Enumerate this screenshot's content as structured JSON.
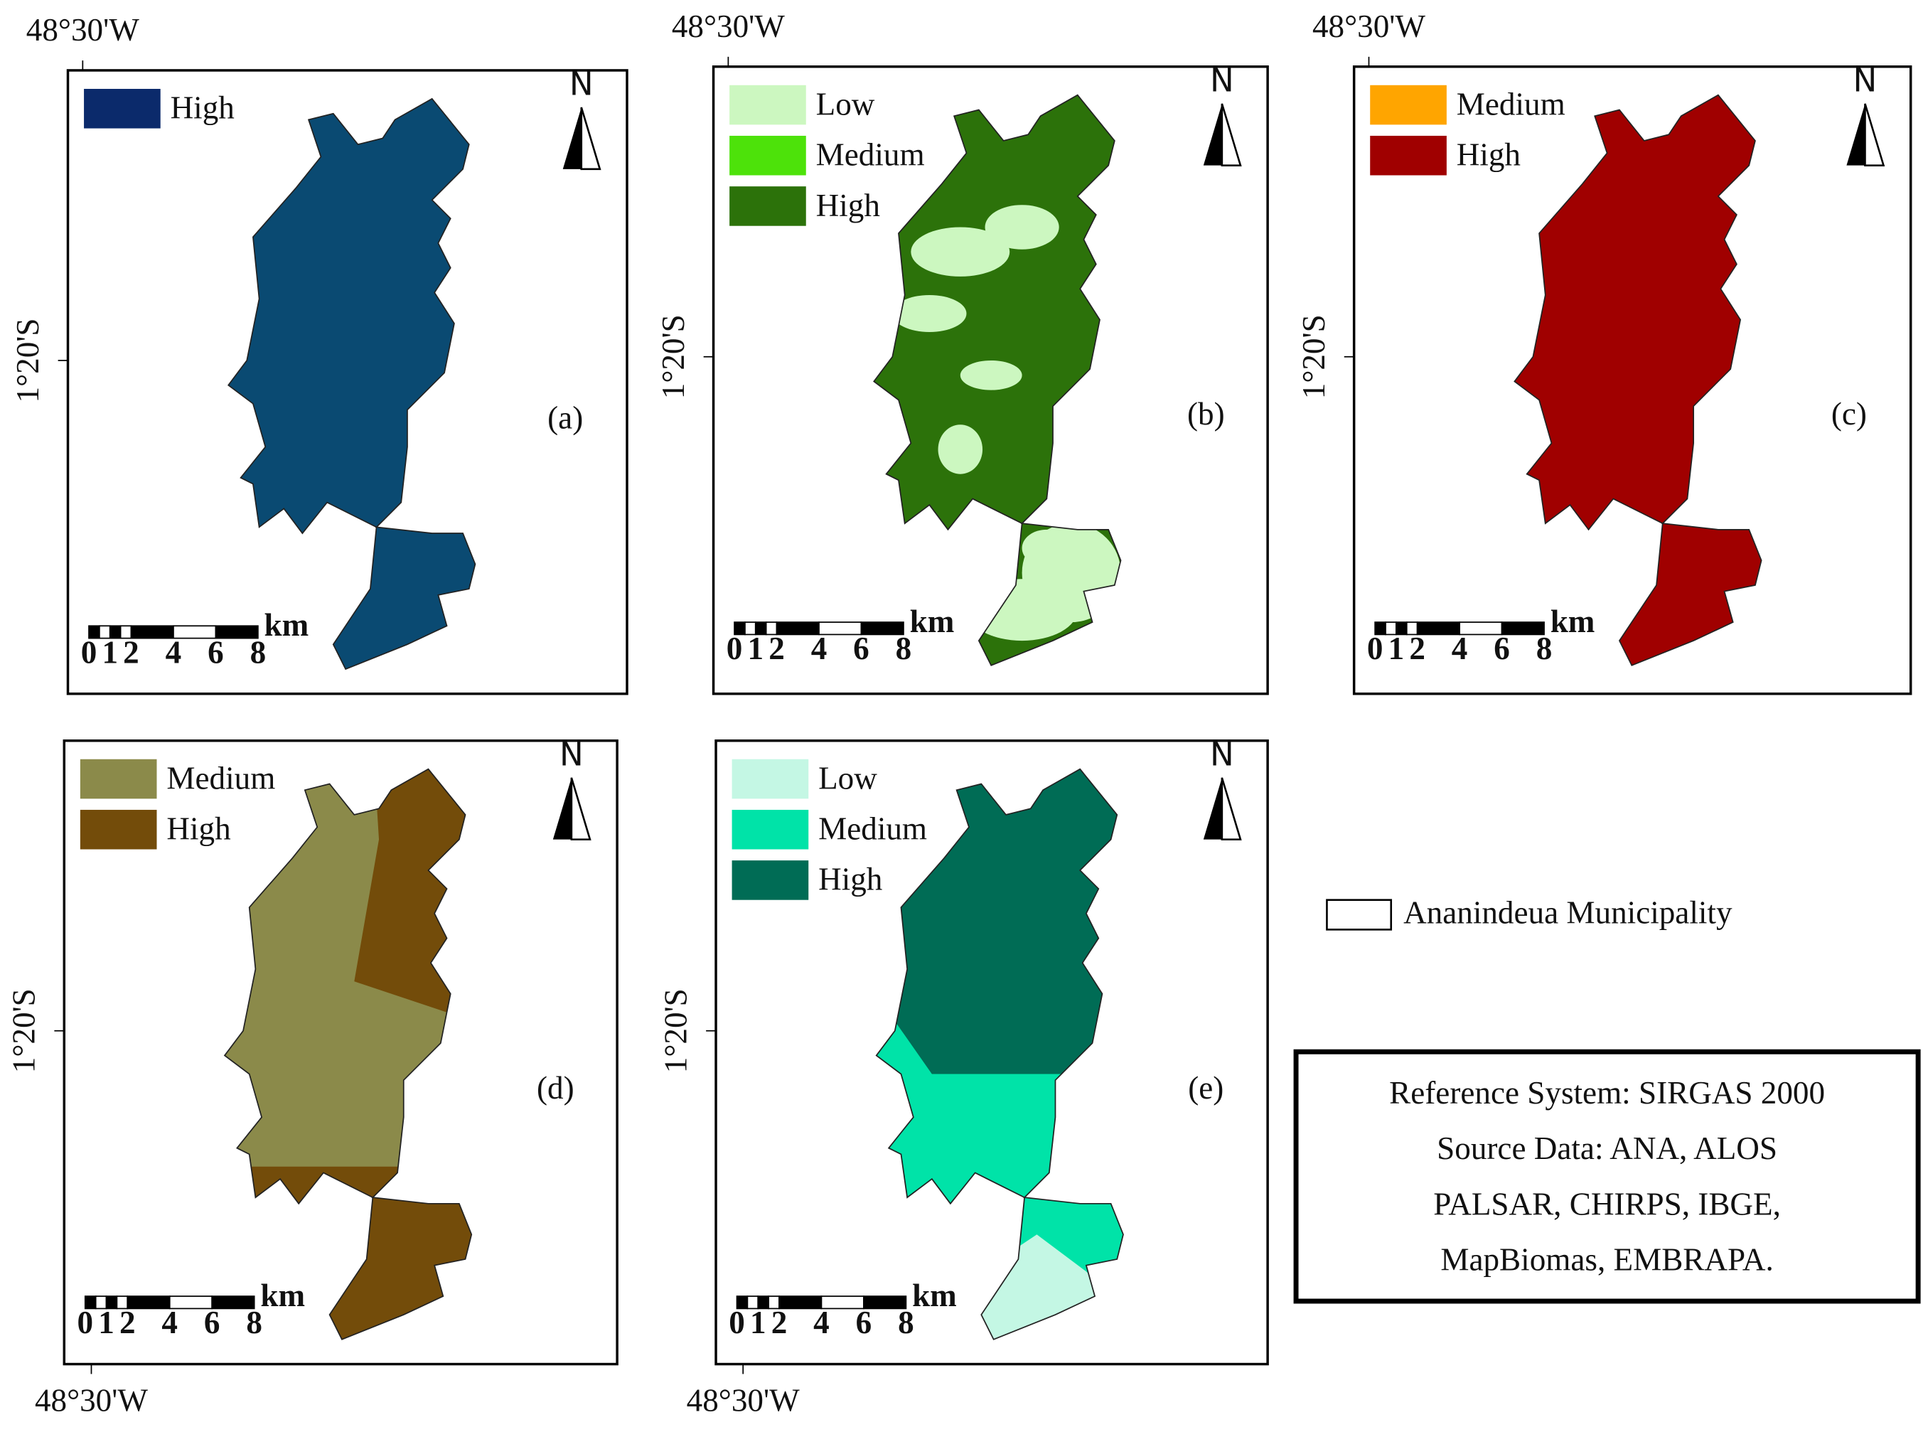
{
  "panels": [
    {
      "label": "(a)",
      "lon_label": "48°30'W",
      "lat_label": "1°20'S",
      "legend": [
        {
          "name": "High",
          "color": "#0b2a6b"
        }
      ],
      "fill": [
        "#0a4a72"
      ]
    },
    {
      "label": "(b)",
      "lon_label": "48°30'W",
      "lat_label": "1°20'S",
      "legend": [
        {
          "name": "Low",
          "color": "#ccf7c0"
        },
        {
          "name": "Medium",
          "color": "#4de20a"
        },
        {
          "name": "High",
          "color": "#2c720a"
        }
      ]
    },
    {
      "label": "(c)",
      "lon_label": "48°30'W",
      "lat_label": "1°20'S",
      "legend": [
        {
          "name": "Medium",
          "color": "#ffa500"
        },
        {
          "name": "High",
          "color": "#a00000"
        }
      ]
    },
    {
      "label": "(d)",
      "lon_label": "48°30'W",
      "lat_label": "1°20'S",
      "legend": [
        {
          "name": "Medium",
          "color": "#8b8a4a"
        },
        {
          "name": "High",
          "color": "#734c0a"
        }
      ]
    },
    {
      "label": "(e)",
      "lon_label": "48°30'W",
      "lat_label": "1°20'S",
      "legend": [
        {
          "name": "Low",
          "color": "#c4f7e4"
        },
        {
          "name": "Medium",
          "color": "#00e3a8"
        },
        {
          "name": "High",
          "color": "#006c55"
        }
      ]
    }
  ],
  "north": "N",
  "scale_unit": "km",
  "scale_ticks": [
    "0",
    "1",
    "2",
    "4",
    "6",
    "8"
  ],
  "boundary_legend": "Ananindeua Municipality",
  "info": [
    "Reference System: SIRGAS 2000",
    "Source Data: ANA, ALOS",
    "PALSAR, CHIRPS, IBGE,",
    "MapBiomas, EMBRAPA."
  ]
}
